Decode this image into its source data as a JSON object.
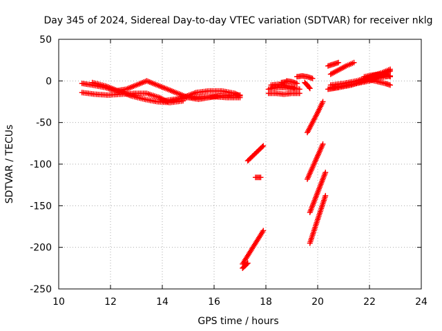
{
  "chart_data": {
    "type": "scatter",
    "title": "Day 345 of 2024, Sidereal Day-to-day VTEC variation (SDTVAR) for receiver nklg",
    "xlabel": "GPS time / hours",
    "ylabel": "SDTVAR / TECUs",
    "xlim": [
      10,
      24
    ],
    "ylim": [
      -250,
      50
    ],
    "xticks": [
      "10",
      "12",
      "14",
      "16",
      "18",
      "20",
      "22",
      "24"
    ],
    "yticks": [
      "50",
      "0",
      "-50",
      "-100",
      "-150",
      "-200",
      "-250"
    ],
    "grid": true,
    "marker": "+",
    "color": "#ff0000",
    "series": [
      {
        "x": [
          10.9,
          11.3,
          11.8,
          12.2,
          12.6,
          13.0,
          13.4
        ],
        "y": [
          -3,
          -5,
          -8,
          -12,
          -10,
          -5,
          0
        ]
      },
      {
        "x": [
          13.4,
          13.8,
          14.2,
          14.6,
          15.0,
          15.4,
          15.8,
          16.2,
          16.6,
          17.0
        ],
        "y": [
          0,
          -5,
          -10,
          -15,
          -20,
          -22,
          -20,
          -18,
          -17,
          -17
        ]
      },
      {
        "x": [
          10.9,
          11.4,
          11.9,
          12.4,
          12.9,
          13.4,
          13.9,
          14.2
        ],
        "y": [
          -14,
          -16,
          -17,
          -16,
          -15,
          -15,
          -20,
          -25
        ]
      },
      {
        "x": [
          11.3,
          11.8,
          12.3,
          12.8,
          13.3,
          13.8,
          14.3,
          14.8
        ],
        "y": [
          -2,
          -6,
          -12,
          -18,
          -22,
          -25,
          -26,
          -24
        ]
      },
      {
        "x": [
          14.3,
          14.8,
          15.3,
          15.8,
          16.3,
          16.8,
          17.0
        ],
        "y": [
          -25,
          -20,
          -14,
          -12,
          -12,
          -15,
          -18
        ]
      },
      {
        "x": [
          14.0,
          14.5,
          15.0,
          15.5,
          16.0,
          16.5,
          17.0
        ],
        "y": [
          -24,
          -22,
          -20,
          -19,
          -19,
          -20,
          -20
        ]
      },
      {
        "x": [
          17.1,
          17.3,
          17.5,
          17.7,
          17.9
        ],
        "y": [
          -220,
          -210,
          -200,
          -190,
          -180
        ]
      },
      {
        "x": [
          17.1,
          17.2,
          17.3
        ],
        "y": [
          -225,
          -222,
          -219
        ]
      },
      {
        "x": [
          17.3,
          17.5,
          17.7,
          17.9
        ],
        "y": [
          -96,
          -90,
          -84,
          -78
        ]
      },
      {
        "x": [
          17.6,
          17.7,
          17.8
        ],
        "y": [
          -116,
          -116,
          -116
        ]
      },
      {
        "x": [
          18.1,
          18.4,
          18.7,
          19.0,
          19.3
        ],
        "y": [
          -10,
          -8,
          -8,
          -9,
          -10
        ]
      },
      {
        "x": [
          18.1,
          18.4,
          18.7,
          19.0,
          19.3
        ],
        "y": [
          -15,
          -15,
          -16,
          -15,
          -15
        ]
      },
      {
        "x": [
          18.2,
          18.5,
          18.8,
          19.1
        ],
        "y": [
          -5,
          -4,
          -6,
          -8
        ]
      },
      {
        "x": [
          18.6,
          18.8
        ],
        "y": [
          -2,
          -1
        ]
      },
      {
        "x": [
          18.8,
          19.0,
          19.2
        ],
        "y": [
          0,
          -1,
          -3
        ]
      },
      {
        "x": [
          19.2,
          19.4,
          19.6,
          19.8
        ],
        "y": [
          5,
          6,
          5,
          3
        ]
      },
      {
        "x": [
          19.5,
          19.6,
          19.7
        ],
        "y": [
          -2,
          -5,
          -9
        ]
      },
      {
        "x": [
          19.6,
          19.8,
          20.0,
          20.2
        ],
        "y": [
          -62,
          -50,
          -38,
          -25
        ]
      },
      {
        "x": [
          19.6,
          19.8,
          20.0,
          20.2
        ],
        "y": [
          -118,
          -104,
          -90,
          -76
        ]
      },
      {
        "x": [
          19.7,
          19.9,
          20.1,
          20.3
        ],
        "y": [
          -158,
          -142,
          -126,
          -110
        ]
      },
      {
        "x": [
          19.7,
          19.9,
          20.1,
          20.3
        ],
        "y": [
          -195,
          -176,
          -157,
          -138
        ]
      },
      {
        "x": [
          20.4,
          20.6,
          20.8
        ],
        "y": [
          -10,
          -9,
          -8
        ]
      },
      {
        "x": [
          20.5,
          20.8,
          21.1,
          21.4
        ],
        "y": [
          8,
          13,
          18,
          22
        ]
      },
      {
        "x": [
          20.4,
          20.6,
          20.8
        ],
        "y": [
          18,
          20,
          22
        ]
      },
      {
        "x": [
          20.5,
          21.0,
          21.5,
          22.0,
          22.5,
          22.8
        ],
        "y": [
          -5,
          -3,
          0,
          5,
          10,
          14
        ]
      },
      {
        "x": [
          20.5,
          21.0,
          21.5,
          22.0,
          22.5,
          22.8
        ],
        "y": [
          -8,
          -6,
          -3,
          2,
          8,
          12
        ]
      },
      {
        "x": [
          20.8,
          21.3,
          21.8,
          22.3,
          22.8
        ],
        "y": [
          -8,
          -5,
          0,
          6,
          12
        ]
      },
      {
        "x": [
          21.5,
          22.0,
          22.3,
          22.6,
          22.8
        ],
        "y": [
          -3,
          0,
          3,
          5,
          6
        ]
      },
      {
        "x": [
          21.8,
          22.1,
          22.4,
          22.7,
          22.8
        ],
        "y": [
          5,
          7,
          8,
          7,
          5
        ]
      },
      {
        "x": [
          21.8,
          22.2,
          22.6,
          22.8
        ],
        "y": [
          3,
          0,
          -3,
          -5
        ]
      }
    ]
  }
}
